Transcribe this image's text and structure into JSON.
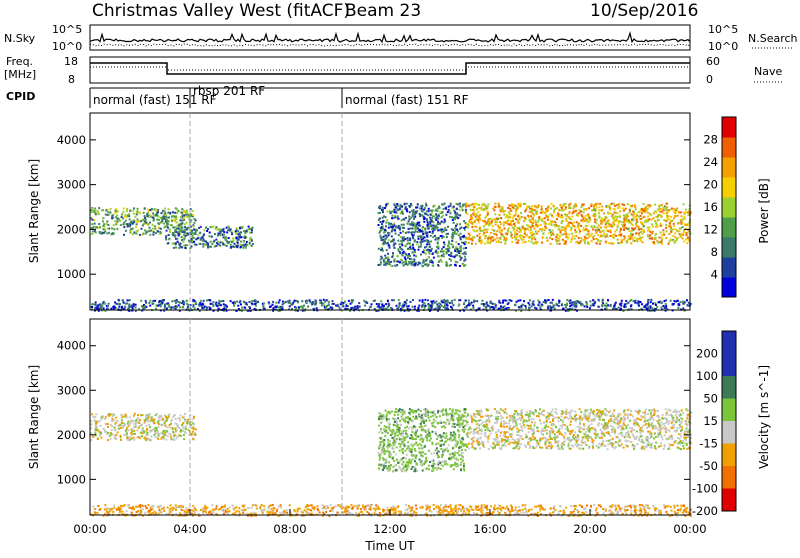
{
  "header": {
    "station": "Christmas Valley West (fitACF)",
    "beam": "Beam 23",
    "date": "10/Sep/2016"
  },
  "summary": {
    "nsky_label": "N.Sky",
    "nsky_ticks": [
      "10^5",
      "10^0"
    ],
    "nsearch_label": "N.Search",
    "nsearch_ticks": [
      "10^5",
      "10^0"
    ],
    "freq_label_1": "Freq.",
    "freq_label_2": "[MHz]",
    "freq_ticks": [
      "18",
      "8"
    ],
    "nave_label": "Nave",
    "nave_ticks": [
      "60",
      "0"
    ],
    "cpid_label": "CPID",
    "cpid_segments": [
      "normal (fast) 151 RF",
      "rbsp 201 RF",
      "normal (fast) 151 RF"
    ]
  },
  "colors": {
    "power": [
      "#0000dd",
      "#1f3fa0",
      "#3a7a68",
      "#4f9f4a",
      "#9bd030",
      "#f5d000",
      "#f5a000",
      "#f06000",
      "#e00000"
    ],
    "velocity": [
      "#2030b0",
      "#3d7a58",
      "#7cc43a",
      "#c8c8c8",
      "#f0a000",
      "#f07000",
      "#e00000"
    ],
    "ground": "#aaaaaa"
  },
  "chart_data": [
    {
      "type": "heatmap",
      "panel": "power",
      "xlabel": "",
      "ylabel": "Slant Range [km]",
      "xlim": [
        "00:00",
        "24:00"
      ],
      "ylim": [
        200,
        4600
      ],
      "yticks": [
        "1000",
        "2000",
        "3000",
        "4000"
      ],
      "colorbar_label": "Power [dB]",
      "colorbar_ticks": [
        "4",
        "8",
        "12",
        "16",
        "20",
        "24",
        "28"
      ],
      "colorbar_range": [
        0,
        32
      ],
      "regions": [
        {
          "t_start": 0.0,
          "t_end": 4.2,
          "r_start": 1900,
          "r_end": 2500,
          "power": 12
        },
        {
          "t_start": 3.0,
          "t_end": 6.5,
          "r_start": 1600,
          "r_end": 2100,
          "power": 9
        },
        {
          "t_start": 11.5,
          "t_end": 15.0,
          "r_start": 1200,
          "r_end": 2600,
          "power": 8
        },
        {
          "t_start": 15.0,
          "t_end": 24.0,
          "r_start": 1700,
          "r_end": 2600,
          "power": 21
        },
        {
          "t_start": 0.0,
          "t_end": 24.0,
          "r_start": 200,
          "r_end": 450,
          "power": 6
        }
      ]
    },
    {
      "type": "heatmap",
      "panel": "velocity",
      "xlabel": "Time UT",
      "ylabel": "Slant Range [km]",
      "xlim": [
        "00:00",
        "24:00"
      ],
      "ylim": [
        200,
        4600
      ],
      "xticks": [
        "00:00",
        "04:00",
        "08:00",
        "12:00",
        "16:00",
        "20:00",
        "00:00"
      ],
      "yticks": [
        "1000",
        "2000",
        "3000",
        "4000"
      ],
      "colorbar_label": "Velocity [m s^-1]",
      "colorbar_ticks": [
        "200",
        "100",
        "50",
        "15",
        "-15",
        "-50",
        "-100",
        "-200"
      ],
      "regions": [
        {
          "t_start": 0.0,
          "t_end": 4.2,
          "r_start": 1900,
          "r_end": 2500,
          "velocity": 0
        },
        {
          "t_start": 11.5,
          "t_end": 15.0,
          "r_start": 1200,
          "r_end": 2600,
          "velocity": 30
        },
        {
          "t_start": 15.0,
          "t_end": 24.0,
          "r_start": 1700,
          "r_end": 2600,
          "velocity": 0
        },
        {
          "t_start": 0.0,
          "t_end": 24.0,
          "r_start": 200,
          "r_end": 450,
          "velocity": -30
        }
      ]
    }
  ]
}
